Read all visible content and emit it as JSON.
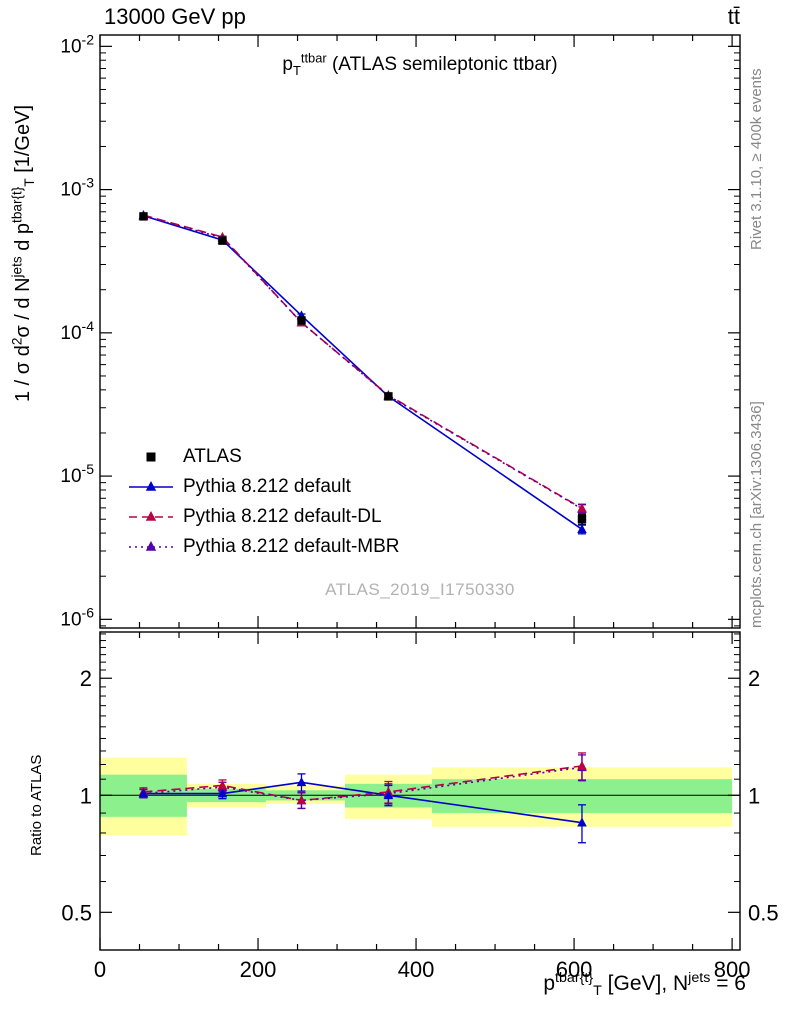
{
  "header": {
    "beam": "13000 GeV pp",
    "process": "tt̄"
  },
  "titles": {
    "watermark": "ATLAS_2019_I1750330",
    "observable_segments": [
      {
        "t": "p",
        "s": "n"
      },
      {
        "t": "T",
        "s": "sub"
      },
      {
        "t": "ttbar",
        "s": "sup"
      },
      {
        "t": " (ATLAS semileptonic ttbar)",
        "s": "n"
      }
    ]
  },
  "right_labels": {
    "rivet": "Rivet 3.1.10, ≥ 400k events",
    "mcplots": "mcplots.cern.ch [arXiv:1306.3436]"
  },
  "axes": {
    "ylabel_ratio": "Ratio to ATLAS",
    "ylabel_main_segments": [
      {
        "t": "1 / σ d",
        "s": "n"
      },
      {
        "t": "2",
        "s": "sup"
      },
      {
        "t": "σ / d N",
        "s": "n"
      },
      {
        "t": "jets",
        "s": "sup"
      },
      {
        "t": " d p",
        "s": "n"
      },
      {
        "t": "tbar{t}",
        "s": "sup"
      },
      {
        "t": "T",
        "s": "sub"
      },
      {
        "t": " [1/GeV]",
        "s": "n"
      }
    ],
    "xlabel_segments": [
      {
        "t": "p",
        "s": "n"
      },
      {
        "t": "tbar{t}",
        "s": "sup"
      },
      {
        "t": "T",
        "s": "sub"
      },
      {
        "t": " [GeV], N",
        "s": "n"
      },
      {
        "t": "jets",
        "s": "sup"
      },
      {
        "t": " = 6",
        "s": "n"
      }
    ]
  },
  "legend": {
    "items": [
      {
        "label": "ATLAS",
        "color": "#000000",
        "line": "none",
        "marker": "square"
      },
      {
        "label": "Pythia 8.212 default",
        "color": "#0000cc",
        "line": "solid",
        "marker": "triangle"
      },
      {
        "label": "Pythia 8.212 default-DL",
        "color": "#bb0044",
        "line": "dashed",
        "marker": "triangle"
      },
      {
        "label": "Pythia 8.212 default-MBR",
        "color": "#5500aa",
        "line": "dotted",
        "marker": "triangle"
      }
    ]
  },
  "chart_data": {
    "type": "line",
    "title": "p_T^ttbar (ATLAS semileptonic ttbar)",
    "xlabel": "p_T^tbar{t} [GeV], N^jets = 6",
    "ylabel": "1 / σ d²σ / d N^jets d p_T^tbar{t} [1/GeV]",
    "ylabel_ratio": "Ratio to ATLAS",
    "x": [
      55,
      155,
      255,
      365,
      610
    ],
    "bin_edges": [
      0,
      110,
      210,
      310,
      420,
      800
    ],
    "xlim": [
      0,
      810
    ],
    "ylim_main": [
      8.7e-07,
      0.012
    ],
    "ylim_ratio": [
      0.4,
      2.63
    ],
    "xticks_major": [
      0,
      200,
      400,
      600,
      800
    ],
    "xtick_minor_step": 50,
    "yticks_main_exp": [
      -2,
      -3,
      -4,
      -5,
      -6
    ],
    "ratio_ticks": [
      0.5,
      1,
      2
    ],
    "colors": {
      "band_yellow": "#ffff9e",
      "band_green": "#8cf08c"
    },
    "series": [
      {
        "name": "ATLAS",
        "color": "#000000",
        "marker": "square",
        "line": "none",
        "y": [
          0.00065,
          0.00044,
          0.000122,
          3.6e-05,
          5e-06
        ],
        "yerr_rel": [
          0.02,
          0.02,
          0.03,
          0.04,
          0.08
        ]
      },
      {
        "name": "Pythia 8.212 default",
        "color": "#0000cc",
        "marker": "triangle",
        "line": "solid",
        "y": [
          0.000657,
          0.000444,
          0.000132,
          3.6e-05,
          4.25e-06
        ],
        "yerr_rel": [
          0.015,
          0.015,
          0.025,
          0.035,
          0.07
        ],
        "ratio": [
          1.01,
          1.01,
          1.08,
          1.0,
          0.85
        ],
        "ratio_err": [
          0.025,
          0.03,
          0.055,
          0.06,
          0.095
        ]
      },
      {
        "name": "Pythia 8.212 default-DL",
        "color": "#bb0044",
        "marker": "triangle",
        "line": "dashed",
        "y": [
          0.000663,
          0.000466,
          0.000118,
          3.67e-05,
          5.95e-06
        ],
        "yerr_rel": [
          0.015,
          0.015,
          0.025,
          0.035,
          0.07
        ],
        "ratio": [
          1.02,
          1.06,
          0.97,
          1.02,
          1.19
        ],
        "ratio_err": [
          0.025,
          0.035,
          0.045,
          0.065,
          0.095
        ]
      },
      {
        "name": "Pythia 8.212 default-MBR",
        "color": "#5500aa",
        "marker": "triangle",
        "line": "dotted",
        "y": [
          0.000656,
          0.00046,
          0.000118,
          3.64e-05,
          5.9e-06
        ],
        "yerr_rel": [
          0.015,
          0.015,
          0.025,
          0.035,
          0.07
        ],
        "ratio": [
          1.01,
          1.05,
          0.97,
          1.01,
          1.18
        ],
        "ratio_err": [
          0.025,
          0.03,
          0.045,
          0.06,
          0.09
        ]
      }
    ],
    "bands": [
      {
        "x0": 0,
        "x1": 110,
        "yellow": [
          0.79,
          1.25
        ],
        "green": [
          0.88,
          1.13
        ]
      },
      {
        "x0": 110,
        "x1": 210,
        "yellow": [
          0.93,
          1.07
        ],
        "green": [
          0.96,
          1.04
        ]
      },
      {
        "x0": 210,
        "x1": 310,
        "yellow": [
          0.95,
          1.06
        ],
        "green": [
          0.97,
          1.03
        ]
      },
      {
        "x0": 310,
        "x1": 420,
        "yellow": [
          0.87,
          1.13
        ],
        "green": [
          0.93,
          1.07
        ]
      },
      {
        "x0": 420,
        "x1": 800,
        "yellow": [
          0.83,
          1.18
        ],
        "green": [
          0.9,
          1.1
        ]
      }
    ]
  }
}
